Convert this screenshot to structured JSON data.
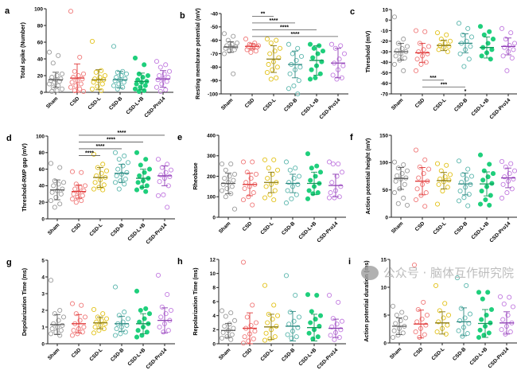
{
  "groups": [
    "Sham",
    "CSD",
    "CSD-L",
    "CSD-B",
    "CSD-L+B",
    "CSD-Pro14"
  ],
  "group_colors": [
    "#9a9a9a",
    "#f07a7a",
    "#e2c21a",
    "#5cb7ae",
    "#1fcf7c",
    "#c27be0"
  ],
  "mean_colors": [
    "#555555",
    "#e03a3a",
    "#8a7a10",
    "#2f8a82",
    "#139a5a",
    "#8e3fb3"
  ],
  "group_filled": [
    false,
    false,
    false,
    false,
    true,
    false
  ],
  "watermark": "公众号 · 脑体互作研究院",
  "chart_data": [
    {
      "panel": "a",
      "type": "scatter",
      "ylabel": "Total spike (Number)",
      "ylim": [
        0,
        100
      ],
      "yticks": [
        0,
        20,
        40,
        60,
        80,
        100
      ],
      "means": [
        15,
        17,
        15,
        15,
        13,
        16
      ],
      "sd": [
        9,
        17,
        12,
        10,
        10,
        10
      ],
      "points": [
        [
          48,
          44,
          35,
          22,
          20,
          18,
          16,
          15,
          14,
          13,
          12,
          10,
          8,
          6,
          4,
          2,
          1
        ],
        [
          97,
          42,
          25,
          22,
          20,
          18,
          16,
          14,
          12,
          10,
          8,
          6,
          4,
          2,
          1
        ],
        [
          61,
          26,
          24,
          20,
          18,
          16,
          15,
          14,
          12,
          10,
          7,
          4,
          2
        ],
        [
          55,
          25,
          24,
          22,
          20,
          18,
          16,
          15,
          14,
          12,
          10,
          8,
          6,
          4
        ],
        [
          41,
          33,
          22,
          20,
          18,
          15,
          13,
          12,
          10,
          8,
          6,
          4,
          2,
          1
        ],
        [
          37,
          33,
          30,
          25,
          22,
          20,
          18,
          16,
          15,
          13,
          10,
          6,
          3,
          1
        ]
      ],
      "significance": []
    },
    {
      "panel": "b",
      "type": "scatter",
      "ylabel": "Resting membrane potential (mV)",
      "ylim": [
        -100,
        -40
      ],
      "yticks": [
        -100,
        -90,
        -80,
        -70,
        -60,
        -50,
        -40
      ],
      "means": [
        -65,
        -64.5,
        -74,
        -78,
        -75,
        -77
      ],
      "sd": [
        4,
        2,
        10,
        10,
        11,
        11
      ],
      "points": [
        [
          -55,
          -57,
          -60,
          -62,
          -63,
          -64,
          -65,
          -65,
          -66,
          -67,
          -68,
          -70,
          -85
        ],
        [
          -59,
          -62,
          -63,
          -64,
          -64,
          -65,
          -65,
          -66,
          -67,
          -68,
          -69
        ],
        [
          -59,
          -60,
          -62,
          -66,
          -68,
          -70,
          -73,
          -76,
          -78,
          -80,
          -82,
          -84,
          -88,
          -89
        ],
        [
          -63,
          -66,
          -70,
          -72,
          -75,
          -78,
          -80,
          -82,
          -85,
          -90,
          -94,
          -96,
          -100
        ],
        [
          -63,
          -64,
          -66,
          -68,
          -70,
          -73,
          -76,
          -79,
          -82,
          -85,
          -88,
          -89
        ],
        [
          -63,
          -64,
          -66,
          -70,
          -74,
          -77,
          -79,
          -82,
          -86,
          -88,
          -89
        ]
      ],
      "significance": [
        {
          "from": "CSD",
          "to": "CSD-L",
          "y": -42,
          "label": "**"
        },
        {
          "from": "CSD",
          "to": "CSD-B",
          "y": -46,
          "label": "****"
        },
        {
          "from": "CSD",
          "to": "CSD-L+B",
          "y": -50,
          "label": "****"
        },
        {
          "from": "CSD",
          "to": "CSD-Pro14",
          "y": -54,
          "label": "****"
        }
      ]
    },
    {
      "panel": "c",
      "type": "scatter",
      "ylabel": "Threshold (mV)",
      "ylim": [
        -70,
        10
      ],
      "yticks": [
        -70,
        -60,
        -50,
        -40,
        -30,
        -20,
        -10,
        0,
        10
      ],
      "means": [
        -30,
        -31,
        -24,
        -22,
        -26,
        -25
      ],
      "sd": [
        8,
        9,
        5,
        9,
        10,
        8
      ],
      "points": [
        [
          3,
          -18,
          -22,
          -25,
          -27,
          -29,
          -30,
          -32,
          -34,
          -36,
          -38,
          -42,
          -48
        ],
        [
          -10,
          -11,
          -22,
          -25,
          -28,
          -30,
          -32,
          -34,
          -37,
          -40,
          -42,
          -48
        ],
        [
          -12,
          -14,
          -18,
          -20,
          -22,
          -24,
          -25,
          -26,
          -28,
          -30
        ],
        [
          -3,
          -8,
          -14,
          -16,
          -20,
          -22,
          -25,
          -28,
          -32,
          -37,
          -44
        ],
        [
          -6,
          -11,
          -14,
          -18,
          -22,
          -26,
          -28,
          -31,
          -34,
          -37
        ],
        [
          -8,
          -12,
          -18,
          -22,
          -24,
          -26,
          -28,
          -30,
          -34,
          -36,
          -48
        ]
      ],
      "significance": [
        {
          "from": "CSD",
          "to": "CSD-L",
          "y": -57,
          "label": "***"
        },
        {
          "from": "CSD",
          "to": "CSD-B",
          "y": -62,
          "label": "***"
        },
        {
          "from": "CSD",
          "to": "CSD-Pro14",
          "y": -68,
          "label": "*"
        }
      ]
    },
    {
      "panel": "d",
      "type": "scatter",
      "ylabel": "Threshold-RMP gap (mV)",
      "ylim": [
        0,
        100
      ],
      "yticks": [
        0,
        20,
        40,
        60,
        80,
        100
      ],
      "means": [
        35,
        33,
        50,
        55,
        49,
        52
      ],
      "sd": [
        12,
        8,
        12,
        11,
        11,
        12
      ],
      "points": [
        [
          67,
          62,
          46,
          44,
          42,
          40,
          36,
          34,
          32,
          30,
          26,
          22,
          18,
          14
        ],
        [
          57,
          56,
          42,
          40,
          38,
          36,
          34,
          32,
          30,
          28,
          26,
          24,
          22,
          20
        ],
        [
          78,
          66,
          62,
          58,
          55,
          52,
          50,
          47,
          44,
          41,
          38,
          36,
          35
        ],
        [
          80,
          76,
          72,
          68,
          64,
          60,
          56,
          54,
          52,
          48,
          46,
          44,
          42,
          36
        ],
        [
          80,
          72,
          65,
          60,
          56,
          52,
          49,
          46,
          44,
          40,
          38,
          35,
          33
        ],
        [
          72,
          66,
          62,
          59,
          56,
          53,
          51,
          49,
          45,
          40,
          29,
          28,
          14
        ]
      ],
      "significance": [
        {
          "from": "CSD",
          "to": "CSD-L",
          "y": 83,
          "label": "****"
        },
        {
          "from": "CSD",
          "to": "CSD-B",
          "y": 89,
          "label": "****"
        },
        {
          "from": "CSD",
          "to": "CSD-L+B",
          "y": 95,
          "label": "****"
        },
        {
          "from": "CSD",
          "to": "CSD-Pro14",
          "y": 101,
          "label": "****"
        }
      ]
    },
    {
      "panel": "e",
      "type": "scatter",
      "ylabel": "Rheobase",
      "ylim": [
        0,
        400
      ],
      "yticks": [
        0,
        100,
        200,
        300,
        400
      ],
      "means": [
        165,
        160,
        170,
        165,
        165,
        155
      ],
      "sd": [
        50,
        55,
        50,
        45,
        55,
        55
      ],
      "points": [
        [
          260,
          260,
          230,
          210,
          200,
          190,
          180,
          170,
          160,
          150,
          140,
          130,
          115,
          100,
          40
        ],
        [
          270,
          270,
          220,
          210,
          190,
          170,
          160,
          150,
          140,
          120,
          100,
          85,
          60
        ],
        [
          280,
          280,
          240,
          230,
          210,
          190,
          170,
          160,
          150,
          130,
          110,
          95,
          85
        ],
        [
          270,
          240,
          230,
          200,
          190,
          170,
          160,
          150,
          130,
          110,
          90,
          70
        ],
        [
          310,
          250,
          240,
          220,
          200,
          180,
          165,
          150,
          130,
          120,
          115,
          90
        ],
        [
          270,
          260,
          260,
          220,
          200,
          170,
          150,
          130,
          120,
          100,
          95,
          95
        ]
      ],
      "significance": []
    },
    {
      "panel": "f",
      "type": "scatter",
      "ylabel": "Action potential height (mV)",
      "ylim": [
        0,
        150
      ],
      "yticks": [
        0,
        50,
        100,
        150
      ],
      "means": [
        71,
        66,
        67,
        61,
        61,
        72
      ],
      "sd": [
        20,
        25,
        15,
        20,
        22,
        18
      ],
      "points": [
        [
          101,
          96,
          90,
          85,
          80,
          76,
          72,
          70,
          66,
          60,
          52,
          45,
          35,
          25,
          22
        ],
        [
          123,
          105,
          92,
          88,
          80,
          72,
          66,
          60,
          52,
          45,
          40,
          32,
          20
        ],
        [
          98,
          95,
          85,
          78,
          74,
          70,
          68,
          65,
          60,
          55,
          48,
          24
        ],
        [
          103,
          88,
          78,
          75,
          70,
          64,
          60,
          55,
          48,
          42,
          36,
          30,
          21
        ],
        [
          114,
          97,
          85,
          80,
          74,
          68,
          62,
          56,
          48,
          40,
          32,
          24,
          22
        ],
        [
          102,
          98,
          92,
          85,
          80,
          74,
          70,
          66,
          60,
          52,
          45,
          35
        ]
      ],
      "significance": []
    },
    {
      "panel": "g",
      "type": "scatter",
      "ylabel": "Depolarization Time (ms)",
      "ylim": [
        0,
        5
      ],
      "yticks": [
        0,
        1,
        2,
        3,
        4,
        5
      ],
      "means": [
        1.15,
        1.2,
        1.25,
        1.2,
        1.2,
        1.4
      ],
      "sd": [
        0.6,
        0.55,
        0.35,
        0.45,
        0.6,
        0.75
      ],
      "points": [
        [
          3.8,
          2.0,
          1.8,
          1.6,
          1.4,
          1.2,
          1.1,
          1.0,
          0.9,
          0.8,
          0.7,
          0.6,
          0.5
        ],
        [
          2.4,
          2.3,
          1.8,
          1.6,
          1.4,
          1.2,
          1.0,
          0.9,
          0.8,
          0.7,
          0.6,
          0.5
        ],
        [
          2.05,
          1.8,
          1.6,
          1.5,
          1.4,
          1.3,
          1.2,
          1.1,
          1.0,
          0.9,
          0.8,
          0.65
        ],
        [
          3.4,
          1.9,
          1.7,
          1.5,
          1.3,
          1.2,
          1.1,
          1.0,
          0.9,
          0.7,
          0.6,
          0.5
        ],
        [
          3.15,
          2.1,
          2.0,
          1.8,
          1.5,
          1.3,
          1.2,
          1.0,
          0.8,
          0.7,
          0.5,
          0.4
        ],
        [
          4.1,
          2.95,
          2.2,
          2.0,
          1.8,
          1.6,
          1.4,
          1.2,
          1.0,
          0.8,
          0.7
        ]
      ],
      "significance": []
    },
    {
      "panel": "h",
      "type": "scatter",
      "ylabel": "Repolarization Time (ms)",
      "ylim": [
        0,
        12
      ],
      "yticks": [
        0,
        2,
        4,
        6,
        8,
        10,
        12
      ],
      "means": [
        1.9,
        2.2,
        2.4,
        2.5,
        2.3,
        2.2
      ],
      "sd": [
        1,
        2.2,
        1.8,
        2.1,
        1.9,
        1.3
      ],
      "points": [
        [
          4.7,
          4.4,
          3.9,
          3.3,
          2.8,
          2.5,
          2.2,
          1.9,
          1.6,
          1.3,
          1.0,
          0.8,
          0.6
        ],
        [
          11.6,
          5.5,
          3.8,
          3.0,
          2.6,
          2.2,
          1.8,
          1.4,
          1.0,
          0.7,
          0.4,
          0.1
        ],
        [
          8.3,
          5.5,
          4.2,
          4.0,
          3.5,
          3.0,
          2.5,
          2.0,
          1.5,
          1.0,
          0.7,
          0.5
        ],
        [
          9.7,
          6.9,
          4.5,
          3.8,
          3.2,
          2.8,
          2.3,
          1.8,
          1.3,
          1.0,
          0.8
        ],
        [
          7.0,
          6.9,
          4.6,
          4.0,
          3.5,
          3.0,
          2.5,
          2.0,
          1.5,
          1.0,
          0.7
        ],
        [
          6.9,
          5.9,
          3.6,
          3.2,
          2.8,
          2.4,
          2.0,
          1.6,
          1.2,
          0.9,
          0.6
        ]
      ],
      "significance": []
    },
    {
      "panel": "i",
      "type": "scatter",
      "ylabel": "Action potential duration (ms)",
      "ylim": [
        0,
        15
      ],
      "yticks": [
        0,
        5,
        10,
        15
      ],
      "means": [
        3.0,
        3.4,
        3.6,
        3.8,
        3.5,
        3.6
      ],
      "sd": [
        1.5,
        2.5,
        2,
        2.5,
        2.5,
        2
      ],
      "points": [
        [
          6.6,
          5.5,
          5.0,
          4.5,
          4.0,
          3.5,
          3.0,
          2.6,
          2.2,
          1.8,
          1.4,
          1.0
        ],
        [
          14,
          7.3,
          6.0,
          5.0,
          4.3,
          3.8,
          3.2,
          2.6,
          2.0,
          1.5,
          1.0
        ],
        [
          10.3,
          7.1,
          5.8,
          5.0,
          4.5,
          3.8,
          3.2,
          2.6,
          2.0,
          1.6
        ],
        [
          11.7,
          10.3,
          6.2,
          5.2,
          4.5,
          4.0,
          3.5,
          2.8,
          2.2,
          1.7,
          1.2
        ],
        [
          9.1,
          9.1,
          7.9,
          6.0,
          5.0,
          4.2,
          3.6,
          3.0,
          2.3,
          1.8,
          1.4,
          1.0
        ],
        [
          8.3,
          8.2,
          7.0,
          6.5,
          5.0,
          4.2,
          3.6,
          3.0,
          2.4,
          2.0,
          1.6
        ]
      ],
      "significance": []
    }
  ]
}
